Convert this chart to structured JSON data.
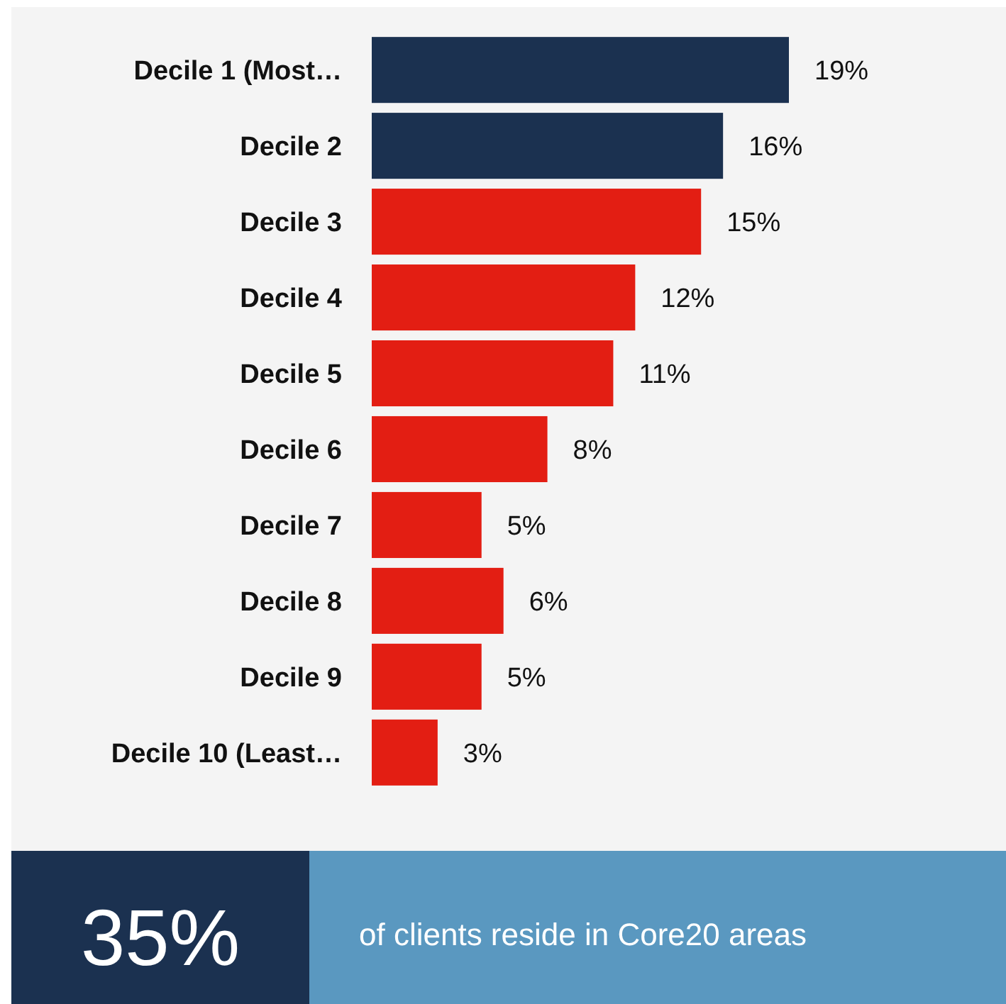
{
  "chart_data": {
    "type": "bar",
    "orientation": "horizontal",
    "categories": [
      "Decile 1 (Most…",
      "Decile 2",
      "Decile 3",
      "Decile 4",
      "Decile 5",
      "Decile 6",
      "Decile 7",
      "Decile 8",
      "Decile 9",
      "Decile 10 (Least…"
    ],
    "values": [
      19,
      16,
      15,
      12,
      11,
      8,
      5,
      6,
      5,
      3
    ],
    "value_labels": [
      "19%",
      "16%",
      "15%",
      "12%",
      "11%",
      "8%",
      "5%",
      "6%",
      "5%",
      "3%"
    ],
    "colors": [
      "#1b3150",
      "#1b3150",
      "#e31e13",
      "#e31e13",
      "#e31e13",
      "#e31e13",
      "#e31e13",
      "#e31e13",
      "#e31e13",
      "#e31e13"
    ],
    "annotations": [
      "35%",
      "of clients reside in Core20 areas"
    ]
  }
}
